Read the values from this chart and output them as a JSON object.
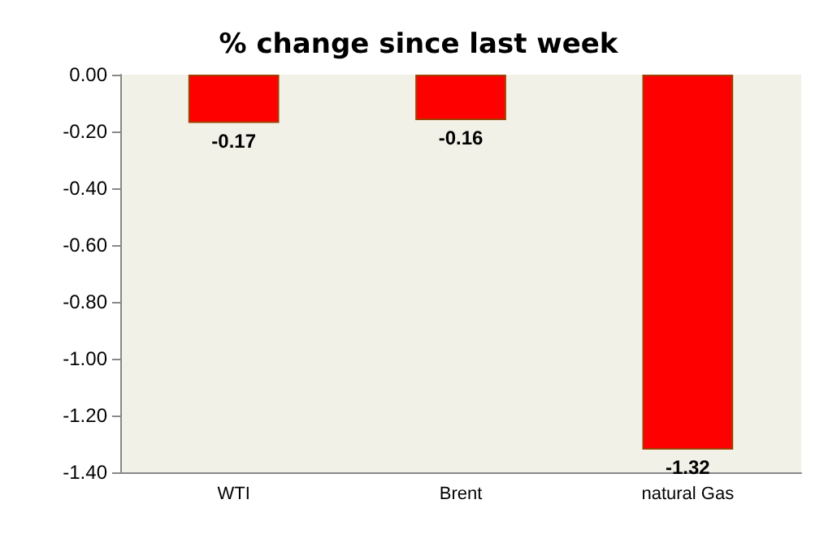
{
  "chart_data": {
    "type": "bar",
    "title": "% change since last week",
    "categories": [
      "WTI",
      "Brent",
      "natural Gas"
    ],
    "values": [
      -0.17,
      -0.16,
      -1.32
    ],
    "color": "#ff0000",
    "ylim": [
      -1.4,
      0
    ],
    "yticks": [
      {
        "value": 0,
        "label": "0.00"
      },
      {
        "value": -0.2,
        "label": "-0.20"
      },
      {
        "value": -0.4,
        "label": "-0.40"
      },
      {
        "value": -0.6,
        "label": "-0.60"
      },
      {
        "value": -0.8,
        "label": "-0.80"
      },
      {
        "value": -1,
        "label": "-1.00"
      },
      {
        "value": -1.2,
        "label": "-1.20"
      },
      {
        "value": -1.4,
        "label": "-1.40"
      }
    ],
    "data_labels": true,
    "grid": false
  }
}
